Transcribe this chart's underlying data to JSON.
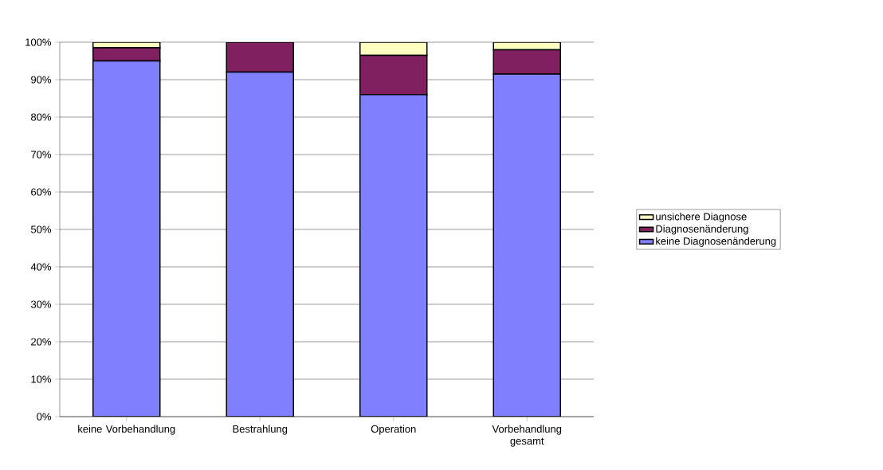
{
  "chart_data": {
    "type": "bar",
    "stacked": true,
    "categories": [
      "keine Vorbehandlung",
      "Bestrahlung",
      "Operation",
      "Vorbehandlung gesamt"
    ],
    "series": [
      {
        "name": "keine Diagnosenänderung",
        "color": "#8080ff",
        "values": [
          95,
          92,
          86,
          91.5
        ]
      },
      {
        "name": "Diagnosenänderung",
        "color": "#802060",
        "values": [
          3.5,
          8,
          10.5,
          6.5
        ]
      },
      {
        "name": "unsichere Diagnose",
        "color": "#ffffc0",
        "values": [
          1.5,
          0,
          3.5,
          2
        ]
      }
    ],
    "ylim": [
      0,
      100
    ],
    "yticks": [
      {
        "value": 0,
        "label": "0%"
      },
      {
        "value": 10,
        "label": "10%"
      },
      {
        "value": 20,
        "label": "20%"
      },
      {
        "value": 30,
        "label": "30%"
      },
      {
        "value": 40,
        "label": "40%"
      },
      {
        "value": 50,
        "label": "50%"
      },
      {
        "value": 60,
        "label": "60%"
      },
      {
        "value": 70,
        "label": "70%"
      },
      {
        "value": 80,
        "label": "80%"
      },
      {
        "value": 90,
        "label": "90%"
      },
      {
        "value": 100,
        "label": "100%"
      }
    ],
    "grid": "y",
    "legend": "right"
  }
}
